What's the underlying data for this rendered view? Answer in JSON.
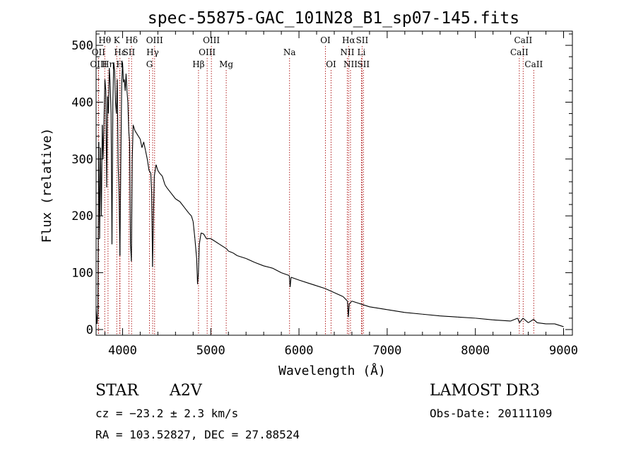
{
  "chart_data": {
    "type": "line",
    "title": "spec-55875-GAC_101N28_B1_sp07-145.fits",
    "xlabel": "Wavelength (Å)",
    "ylabel": "Flux (relative)",
    "xlim": [
      3700,
      9100
    ],
    "ylim": [
      -10,
      525
    ],
    "xticks": [
      4000,
      5000,
      6000,
      7000,
      8000,
      9000
    ],
    "xticklabels": [
      "4000",
      "5000",
      "6000",
      "7000",
      "8000",
      "9000"
    ],
    "yticks": [
      0,
      100,
      200,
      300,
      400,
      500
    ],
    "yticklabels": [
      "0",
      "100",
      "200",
      "300",
      "400",
      "500"
    ],
    "series": [
      {
        "name": "flux",
        "points": [
          [
            3700,
            40
          ],
          [
            3710,
            10
          ],
          [
            3720,
            30
          ],
          [
            3730,
            330
          ],
          [
            3740,
            160
          ],
          [
            3750,
            320
          ],
          [
            3760,
            200
          ],
          [
            3770,
            360
          ],
          [
            3780,
            300
          ],
          [
            3790,
            370
          ],
          [
            3800,
            440
          ],
          [
            3810,
            420
          ],
          [
            3820,
            250
          ],
          [
            3830,
            410
          ],
          [
            3840,
            380
          ],
          [
            3850,
            460
          ],
          [
            3860,
            430
          ],
          [
            3870,
            380
          ],
          [
            3880,
            150
          ],
          [
            3890,
            400
          ],
          [
            3900,
            470
          ],
          [
            3910,
            455
          ],
          [
            3920,
            400
          ],
          [
            3930,
            380
          ],
          [
            3940,
            440
          ],
          [
            3950,
            290
          ],
          [
            3960,
            240
          ],
          [
            3970,
            130
          ],
          [
            3980,
            290
          ],
          [
            3990,
            430
          ],
          [
            4000,
            470
          ],
          [
            4010,
            435
          ],
          [
            4020,
            440
          ],
          [
            4030,
            420
          ],
          [
            4040,
            450
          ],
          [
            4050,
            420
          ],
          [
            4060,
            400
          ],
          [
            4070,
            350
          ],
          [
            4080,
            330
          ],
          [
            4090,
            150
          ],
          [
            4100,
            120
          ],
          [
            4110,
            300
          ],
          [
            4120,
            360
          ],
          [
            4140,
            350
          ],
          [
            4160,
            345
          ],
          [
            4180,
            340
          ],
          [
            4200,
            335
          ],
          [
            4220,
            320
          ],
          [
            4240,
            330
          ],
          [
            4260,
            315
          ],
          [
            4280,
            300
          ],
          [
            4300,
            280
          ],
          [
            4320,
            275
          ],
          [
            4330,
            240
          ],
          [
            4340,
            110
          ],
          [
            4350,
            200
          ],
          [
            4360,
            270
          ],
          [
            4380,
            290
          ],
          [
            4400,
            280
          ],
          [
            4420,
            275
          ],
          [
            4450,
            270
          ],
          [
            4480,
            255
          ],
          [
            4500,
            250
          ],
          [
            4550,
            240
          ],
          [
            4600,
            230
          ],
          [
            4650,
            225
          ],
          [
            4700,
            215
          ],
          [
            4750,
            205
          ],
          [
            4780,
            200
          ],
          [
            4800,
            190
          ],
          [
            4820,
            160
          ],
          [
            4840,
            125
          ],
          [
            4850,
            80
          ],
          [
            4860,
            100
          ],
          [
            4870,
            150
          ],
          [
            4890,
            170
          ],
          [
            4920,
            168
          ],
          [
            4950,
            160
          ],
          [
            5000,
            160
          ],
          [
            5050,
            155
          ],
          [
            5100,
            150
          ],
          [
            5150,
            145
          ],
          [
            5180,
            142
          ],
          [
            5200,
            138
          ],
          [
            5250,
            135
          ],
          [
            5300,
            130
          ],
          [
            5400,
            125
          ],
          [
            5500,
            118
          ],
          [
            5600,
            112
          ],
          [
            5700,
            108
          ],
          [
            5800,
            100
          ],
          [
            5890,
            95
          ],
          [
            5900,
            75
          ],
          [
            5910,
            92
          ],
          [
            6000,
            87
          ],
          [
            6100,
            82
          ],
          [
            6200,
            77
          ],
          [
            6300,
            72
          ],
          [
            6400,
            65
          ],
          [
            6500,
            58
          ],
          [
            6550,
            50
          ],
          [
            6560,
            22
          ],
          [
            6570,
            45
          ],
          [
            6600,
            50
          ],
          [
            6700,
            45
          ],
          [
            6800,
            40
          ],
          [
            7000,
            35
          ],
          [
            7200,
            30
          ],
          [
            7400,
            27
          ],
          [
            7600,
            24
          ],
          [
            7800,
            22
          ],
          [
            8000,
            20
          ],
          [
            8200,
            17
          ],
          [
            8400,
            15
          ],
          [
            8480,
            20
          ],
          [
            8500,
            12
          ],
          [
            8540,
            20
          ],
          [
            8600,
            12
          ],
          [
            8660,
            18
          ],
          [
            8700,
            12
          ],
          [
            8800,
            10
          ],
          [
            8900,
            10
          ],
          [
            9000,
            5
          ]
        ]
      }
    ],
    "lines": [
      {
        "label": "Hθ",
        "wave": 3798,
        "row": 1
      },
      {
        "label": "OII",
        "wave": 3727,
        "row": 2
      },
      {
        "label": "OIII",
        "wave": 3727,
        "row": 3
      },
      {
        "label": "Hη",
        "wave": 3835,
        "row": 3
      },
      {
        "label": "K",
        "wave": 3934,
        "row": 1
      },
      {
        "label": "H",
        "wave": 3969,
        "row": 3
      },
      {
        "label": "Hε",
        "wave": 3970,
        "row": 2
      },
      {
        "label": "SII",
        "wave": 4072,
        "row": 2
      },
      {
        "label": "Hδ",
        "wave": 4102,
        "row": 1
      },
      {
        "label": "OIII",
        "wave": 4363,
        "row": 1
      },
      {
        "label": "Hγ",
        "wave": 4341,
        "row": 2
      },
      {
        "label": "G",
        "wave": 4305,
        "row": 3
      },
      {
        "label": "Hβ",
        "wave": 4861,
        "row": 3
      },
      {
        "label": "OIII",
        "wave": 5007,
        "row": 1
      },
      {
        "label": "OIII",
        "wave": 4959,
        "row": 2
      },
      {
        "label": "Mg",
        "wave": 5175,
        "row": 3
      },
      {
        "label": "Na",
        "wave": 5893,
        "row": 2
      },
      {
        "label": "OI",
        "wave": 6300,
        "row": 1
      },
      {
        "label": "OI",
        "wave": 6364,
        "row": 3
      },
      {
        "label": "Hα",
        "wave": 6563,
        "row": 1
      },
      {
        "label": "NII",
        "wave": 6548,
        "row": 2
      },
      {
        "label": "NII",
        "wave": 6584,
        "row": 3
      },
      {
        "label": "SII",
        "wave": 6716,
        "row": 1
      },
      {
        "label": "Li",
        "wave": 6708,
        "row": 2
      },
      {
        "label": "SII",
        "wave": 6731,
        "row": 3
      },
      {
        "label": "CaII",
        "wave": 8542,
        "row": 1
      },
      {
        "label": "CaII",
        "wave": 8498,
        "row": 2
      },
      {
        "label": "CaII",
        "wave": 8662,
        "row": 3
      }
    ]
  },
  "info": {
    "object_class": "STAR",
    "subclass": "A2V",
    "survey": "LAMOST DR3",
    "velocity": "cz = −23.2 ± 2.3 km/s",
    "obs_date": "Obs-Date: 20111109",
    "coords": "RA = 103.52827, DEC =  27.88524"
  }
}
